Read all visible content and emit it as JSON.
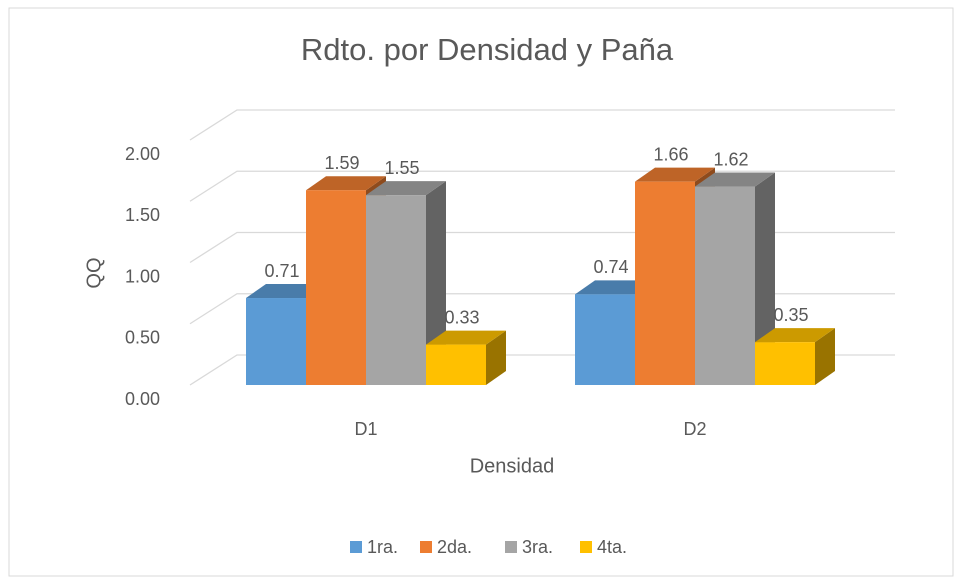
{
  "chart_data": {
    "type": "bar3d",
    "title": "Rdto. por Densidad y Paña",
    "x_label": "Densidad",
    "y_label": "QQ",
    "categories": [
      "D1",
      "D2"
    ],
    "series": [
      {
        "name": "1ra.",
        "color": "#5b9bd5",
        "values": [
          0.71,
          0.74
        ]
      },
      {
        "name": "2da.",
        "color": "#ed7d31",
        "values": [
          1.59,
          1.66
        ]
      },
      {
        "name": "3ra.",
        "color": "#a5a5a5",
        "values": [
          1.55,
          1.62
        ]
      },
      {
        "name": "4ta.",
        "color": "#ffc000",
        "values": [
          0.33,
          0.35
        ]
      }
    ],
    "ylim": [
      0,
      2
    ],
    "yticks": [
      {
        "value": 0,
        "label": "0.00"
      },
      {
        "value": 0.5,
        "label": "0.50"
      },
      {
        "value": 1,
        "label": "1.00"
      },
      {
        "value": 1.5,
        "label": "1.50"
      },
      {
        "value": 2,
        "label": "2.00"
      }
    ],
    "grid": true,
    "legend": "bottom"
  }
}
